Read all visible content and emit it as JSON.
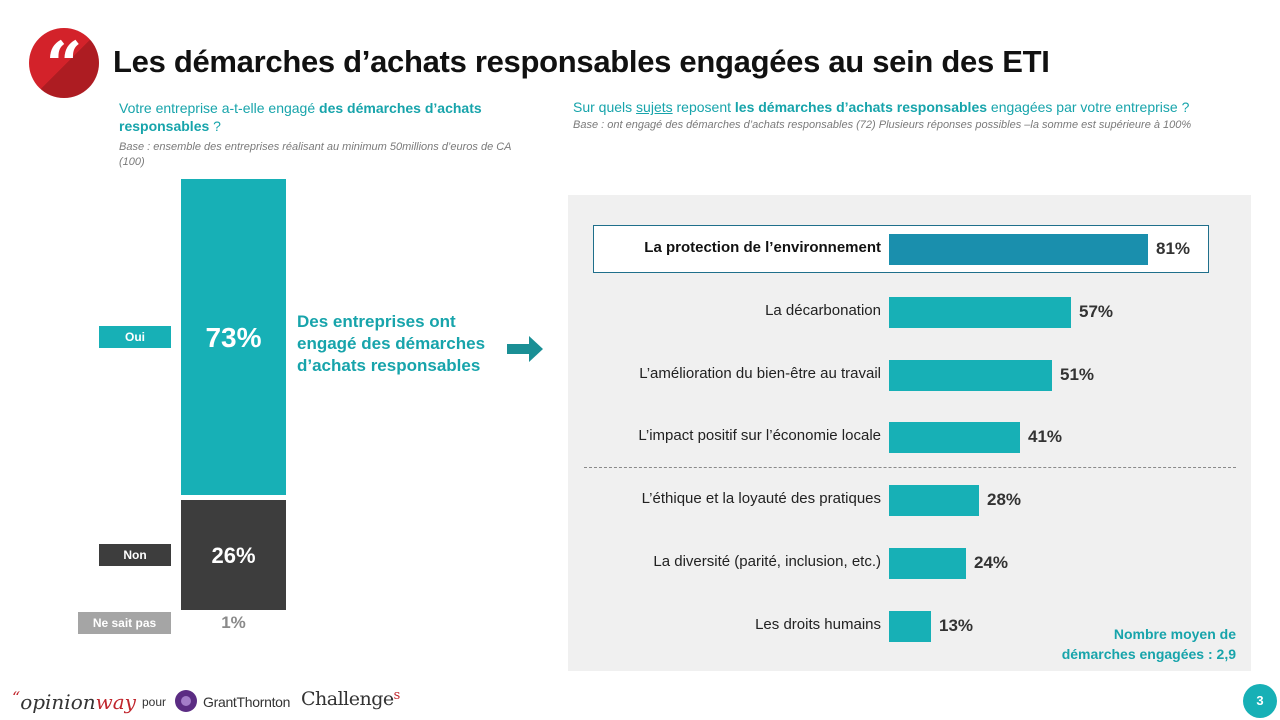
{
  "title": "Les démarches d’achats responsables engagées au sein des ETI",
  "quote_glyph": "“",
  "left": {
    "question_pre": "Votre entreprise a-t-elle engagé ",
    "question_bold": "des démarches d’achats responsables",
    "question_post": " ?",
    "base": "Base : ensemble des entreprises réalisant au minimum 50millions d’euros de CA (100)",
    "summary": "Des entreprises ont engagé des démarches d’achats responsables"
  },
  "right": {
    "question_pre": "Sur quels ",
    "question_underlined": "sujets",
    "question_mid": " reposent ",
    "question_bold": "les démarches d’achats responsables",
    "question_post": " engagées par votre entreprise ?",
    "base": "Base : ont engagé des démarches d’achats responsables (72) Plusieurs réponses possibles –la somme est supérieure à 100%",
    "average_note_line1": "Nombre moyen de",
    "average_note_line2": "démarches engagées : 2,9"
  },
  "chart_data": [
    {
      "type": "bar",
      "orientation": "stacked-vertical",
      "categories": [
        "Oui",
        "Non",
        "Ne sait pas"
      ],
      "values": [
        73,
        26,
        1
      ],
      "value_labels": [
        "73%",
        "26%",
        "1%"
      ],
      "unit": "%",
      "colors": [
        "#17b0b6",
        "#3d3d3d",
        "#a5a5a5"
      ]
    },
    {
      "type": "bar",
      "orientation": "horizontal",
      "categories": [
        "La protection de l’environnement",
        "La décarbonation",
        "L’amélioration du bien-être au travail",
        "L’impact positif sur l’économie locale",
        "L’éthique et la loyauté des pratiques",
        "La diversité (parité, inclusion, etc.)",
        "Les droits humains"
      ],
      "values": [
        81,
        57,
        51,
        41,
        28,
        24,
        13
      ],
      "value_labels": [
        "81%",
        "57%",
        "51%",
        "41%",
        "28%",
        "24%",
        "13%"
      ],
      "unit": "%",
      "highlighted": "La protection de l’environnement",
      "colors": {
        "bar": "#17b0b6",
        "highlight_bar": "#1a8fad"
      }
    }
  ],
  "footer": {
    "brand_quote": "“",
    "brand_opinion": "opinion",
    "brand_way": "way",
    "pour": "pour",
    "partner_gt": "GrantThornton",
    "partner_challenges": "Challenge",
    "partner_challenges_s": "s",
    "page_number": "3"
  },
  "colors": {
    "accent": "#17b0b6",
    "brand_red": "#d3222a",
    "dark": "#3d3d3d"
  }
}
